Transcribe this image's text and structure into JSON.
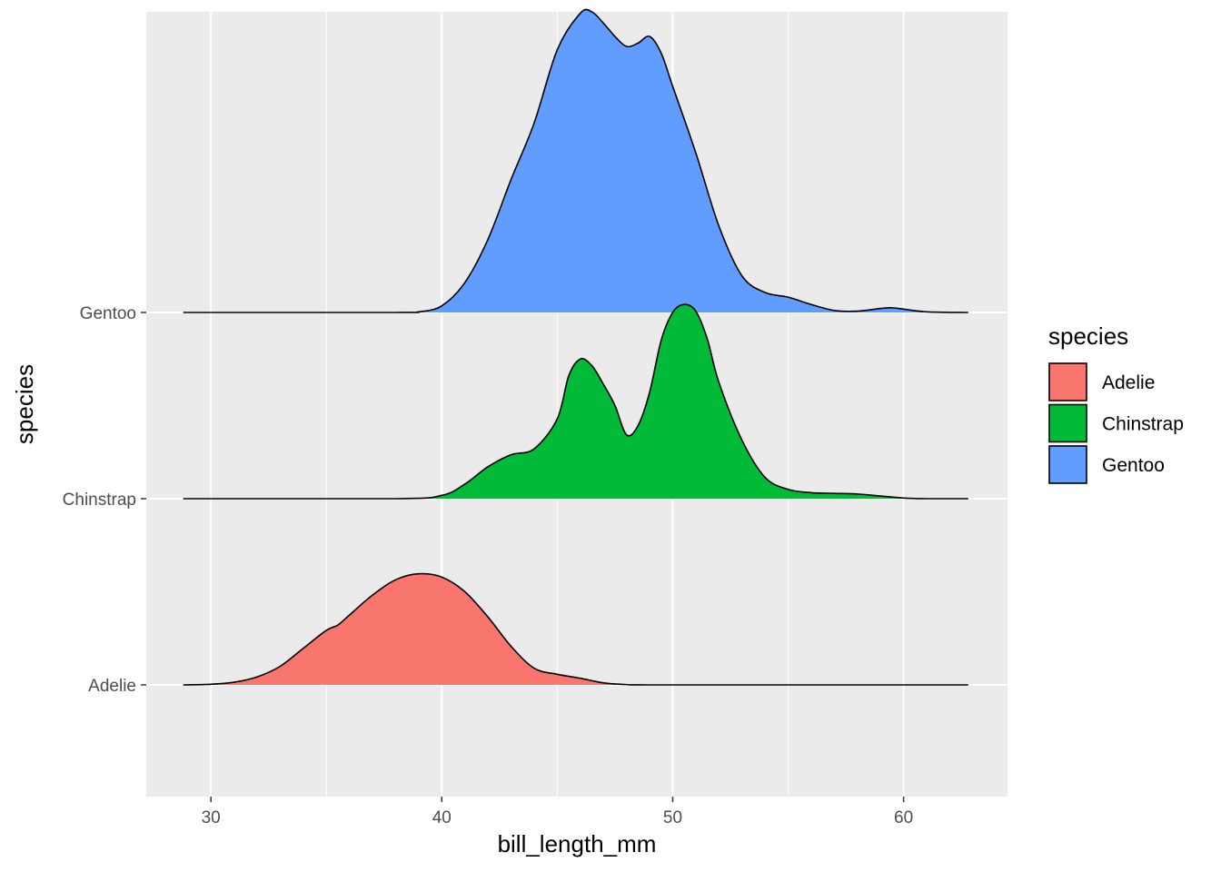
{
  "chart_data": {
    "type": "area",
    "subtype": "ridgeline-density",
    "xlabel": "bill_length_mm",
    "ylabel": "species",
    "xlim": [
      27.2,
      64.5
    ],
    "x_ticks": [
      30,
      40,
      50,
      60
    ],
    "categories": [
      "Adelie",
      "Chinstrap",
      "Gentoo"
    ],
    "grid": true,
    "legend_position": "right",
    "legend_title": "species",
    "series": [
      {
        "name": "Adelie",
        "color": "#F8766D",
        "x": [
          28.8,
          30,
          31,
          32,
          33,
          34,
          35,
          35.5,
          36,
          37,
          38,
          39,
          40,
          41,
          42,
          43,
          44,
          45,
          46,
          47,
          48,
          48.9,
          55,
          62.8
        ],
        "height": [
          0,
          0.01,
          0.04,
          0.12,
          0.28,
          0.55,
          0.82,
          0.9,
          1.05,
          1.35,
          1.58,
          1.67,
          1.62,
          1.4,
          1.02,
          0.58,
          0.25,
          0.16,
          0.1,
          0.03,
          0.005,
          0,
          0,
          0
        ]
      },
      {
        "name": "Chinstrap",
        "color": "#00BA38",
        "x": [
          28.8,
          38,
          40,
          41,
          42,
          43,
          44,
          45,
          45.5,
          46,
          46.5,
          47,
          47.5,
          48,
          48.5,
          49,
          49.5,
          50,
          50.5,
          51,
          51.5,
          52,
          53,
          54,
          55,
          56,
          57,
          58,
          59,
          60,
          61,
          62.8
        ],
        "height": [
          0,
          0,
          0.05,
          0.22,
          0.48,
          0.66,
          0.75,
          1.2,
          1.85,
          2.1,
          2.0,
          1.72,
          1.4,
          0.96,
          1.1,
          1.6,
          2.38,
          2.8,
          2.92,
          2.82,
          2.4,
          1.75,
          0.88,
          0.32,
          0.14,
          0.09,
          0.08,
          0.07,
          0.04,
          0.01,
          0,
          0
        ]
      },
      {
        "name": "Gentoo",
        "color": "#619CFF",
        "x": [
          28.8,
          38,
          39,
          40,
          41,
          42,
          43,
          44,
          45,
          46,
          46.5,
          47,
          47.5,
          48,
          48.5,
          49,
          49.5,
          50,
          51,
          52,
          53,
          54,
          55,
          56,
          57,
          58,
          59,
          59.5,
          60,
          61,
          62.8
        ],
        "height": [
          0,
          0,
          0.01,
          0.1,
          0.45,
          1.1,
          2.0,
          2.85,
          3.95,
          4.5,
          4.52,
          4.35,
          4.15,
          4.0,
          4.05,
          4.15,
          3.9,
          3.4,
          2.4,
          1.3,
          0.55,
          0.3,
          0.23,
          0.12,
          0.03,
          0.02,
          0.06,
          0.07,
          0.05,
          0.01,
          0
        ]
      }
    ]
  }
}
